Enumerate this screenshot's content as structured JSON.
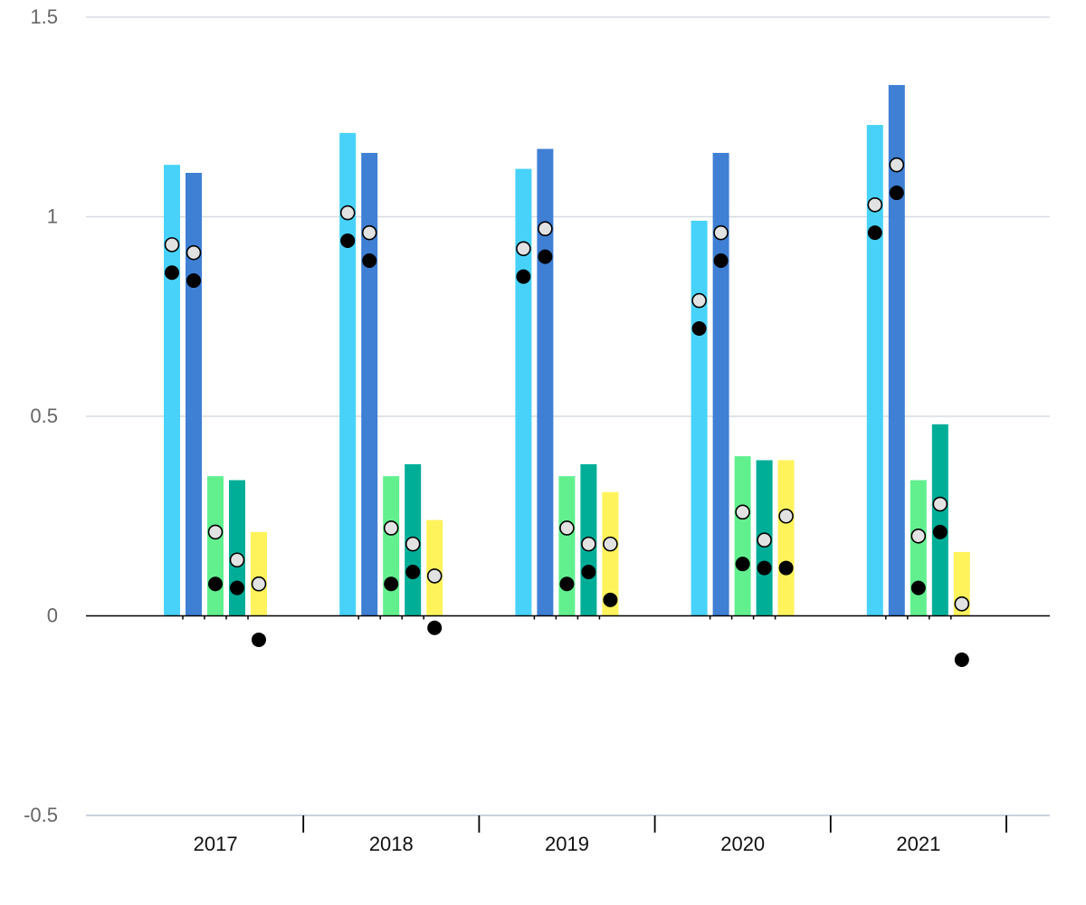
{
  "chart_data": {
    "type": "bar",
    "categories": [
      "2017",
      "2018",
      "2019",
      "2020",
      "2021"
    ],
    "ylim": [
      -0.5,
      1.5
    ],
    "yticks": [
      1.5,
      1,
      0.5,
      0,
      -0.5
    ],
    "ytick_labels": [
      "1.5",
      "1",
      "0.5",
      "0",
      "-0.5"
    ],
    "grid": true,
    "title": "",
    "xlabel": "",
    "ylabel": "",
    "series": [
      {
        "color": "#48D2FA",
        "values": [
          1.13,
          1.21,
          1.12,
          0.99,
          1.23
        ],
        "markers_open": [
          0.93,
          1.01,
          0.92,
          0.79,
          1.03
        ],
        "markers_filled": [
          0.86,
          0.94,
          0.85,
          0.72,
          0.96
        ]
      },
      {
        "color": "#3F7FD4",
        "values": [
          1.11,
          1.16,
          1.17,
          1.16,
          1.33
        ],
        "markers_open": [
          0.91,
          0.96,
          0.97,
          0.96,
          1.13
        ],
        "markers_filled": [
          0.84,
          0.89,
          0.9,
          0.89,
          1.06
        ]
      },
      {
        "color": "#62F08F",
        "values": [
          0.35,
          0.35,
          0.35,
          0.4,
          0.34
        ],
        "markers_open": [
          0.21,
          0.22,
          0.22,
          0.26,
          0.2
        ],
        "markers_filled": [
          0.08,
          0.08,
          0.08,
          0.13,
          0.07
        ]
      },
      {
        "color": "#00AE98",
        "values": [
          0.34,
          0.38,
          0.38,
          0.39,
          0.48
        ],
        "markers_open": [
          0.14,
          0.18,
          0.18,
          0.19,
          0.28
        ],
        "markers_filled": [
          0.07,
          0.11,
          0.11,
          0.12,
          0.21
        ]
      },
      {
        "color": "#FFF35C",
        "values": [
          0.21,
          0.24,
          0.31,
          0.39,
          0.16
        ],
        "markers_open": [
          0.08,
          0.1,
          0.18,
          0.25,
          0.03
        ],
        "markers_filled": [
          -0.06,
          -0.03,
          0.04,
          0.12,
          -0.11
        ]
      }
    ]
  }
}
